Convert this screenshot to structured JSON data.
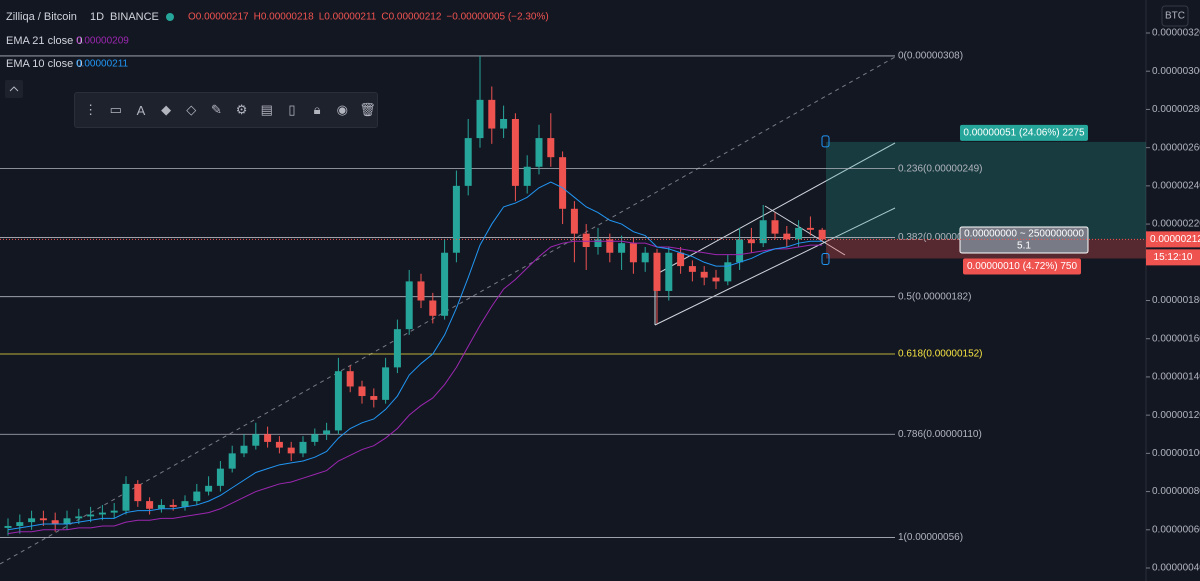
{
  "chart_data": {
    "type": "candlestick",
    "symbol": "Zilliqa / Bitcoin",
    "interval": "1D",
    "exchange": "BINANCE",
    "ohlc_legend": [
      "O0.00000217",
      "H0.00000218",
      "L0.00000211",
      "C0.00000212",
      "−0.00000005 (−2.30%)"
    ],
    "up_color": "#26a69a",
    "down_color": "#ef5350",
    "open": [
      6.1e-07,
      6.2e-07,
      6.4e-07,
      6.6e-07,
      6.5e-07,
      6.3e-07,
      6.6e-07,
      6.7e-07,
      6.8e-07,
      6.9e-07,
      7e-07,
      8.4e-07,
      7.5e-07,
      7.1e-07,
      7.3e-07,
      7.2e-07,
      7.5e-07,
      8e-07,
      8.3e-07,
      9.2e-07,
      1e-06,
      1.04e-06,
      1.1e-06,
      1.06e-06,
      1.03e-06,
      1e-06,
      1.06e-06,
      1.1e-06,
      1.12e-06,
      1.43e-06,
      1.35e-06,
      1.3e-06,
      1.28e-06,
      1.45e-06,
      1.65e-06,
      1.9e-06,
      1.8e-06,
      1.72e-06,
      2.05e-06,
      2.4e-06,
      2.65e-06,
      2.85e-06,
      2.7e-06,
      2.75e-06,
      2.4e-06,
      2.5e-06,
      2.65e-06,
      2.55e-06,
      2.28e-06,
      2.15e-06,
      2.08e-06,
      2.12e-06,
      2.05e-06,
      2.1e-06,
      2e-06,
      2.05e-06,
      1.85e-06,
      2.05e-06,
      1.98e-06,
      1.95e-06,
      1.92e-06,
      1.9e-06,
      2e-06,
      2.12e-06,
      2.1e-06,
      2.22e-06,
      2.15e-06,
      2.12e-06,
      2.18e-06,
      2.17e-06
    ],
    "high": [
      6.6e-07,
      6.8e-07,
      7e-07,
      7e-07,
      6.9e-07,
      7e-07,
      7.1e-07,
      7.2e-07,
      7.3e-07,
      7.4e-07,
      8.8e-07,
      8.6e-07,
      7.7e-07,
      7.6e-07,
      7.6e-07,
      7.8e-07,
      8.4e-07,
      8.8e-07,
      9.6e-07,
      1.04e-06,
      1.1e-06,
      1.16e-06,
      1.14e-06,
      1.09e-06,
      1.06e-06,
      1.09e-06,
      1.13e-06,
      1.16e-06,
      1.5e-06,
      1.46e-06,
      1.38e-06,
      1.34e-06,
      1.5e-06,
      1.7e-06,
      1.96e-06,
      1.94e-06,
      1.84e-06,
      2.12e-06,
      2.48e-06,
      2.75e-06,
      3.08e-06,
      2.92e-06,
      2.82e-06,
      2.78e-06,
      2.56e-06,
      2.72e-06,
      2.78e-06,
      2.58e-06,
      2.32e-06,
      2.2e-06,
      2.18e-06,
      2.15e-06,
      2.14e-06,
      2.13e-06,
      2.08e-06,
      2.07e-06,
      2.08e-06,
      2.08e-06,
      2.01e-06,
      1.98e-06,
      1.96e-06,
      2.04e-06,
      2.18e-06,
      2.18e-06,
      2.3e-06,
      2.26e-06,
      2.19e-06,
      2.22e-06,
      2.24e-06,
      2.18e-06
    ],
    "low": [
      5.7e-07,
      5.8e-07,
      6e-07,
      6.2e-07,
      5.9e-07,
      6e-07,
      6.3e-07,
      6.4e-07,
      6.5e-07,
      6.6e-07,
      6.8e-07,
      7.2e-07,
      6.8e-07,
      6.9e-07,
      7e-07,
      7e-07,
      7.3e-07,
      7.8e-07,
      8e-07,
      9e-07,
      9.8e-07,
      1.02e-06,
      1.03e-06,
      1e-06,
      9.6e-07,
      9.8e-07,
      1.04e-06,
      1.07e-06,
      1.1e-06,
      1.32e-06,
      1.26e-06,
      1.24e-06,
      1.26e-06,
      1.42e-06,
      1.62e-06,
      1.76e-06,
      1.68e-06,
      1.7e-06,
      2e-06,
      2.35e-06,
      2.6e-06,
      2.62e-06,
      2.65e-06,
      2.32e-06,
      2.36e-06,
      2.46e-06,
      2.5e-06,
      2.2e-06,
      2e-06,
      1.96e-06,
      2.04e-06,
      2e-06,
      1.96e-06,
      1.94e-06,
      1.95e-06,
      1.68e-06,
      1.8e-06,
      1.94e-06,
      1.9e-06,
      1.88e-06,
      1.86e-06,
      1.88e-06,
      1.96e-06,
      2.05e-06,
      2.08e-06,
      2.12e-06,
      2.08e-06,
      2.08e-06,
      2.14e-06,
      2.11e-06
    ],
    "close": [
      6.2e-07,
      6.4e-07,
      6.6e-07,
      6.5e-07,
      6.3e-07,
      6.6e-07,
      6.7e-07,
      6.8e-07,
      6.9e-07,
      7e-07,
      8.4e-07,
      7.5e-07,
      7.1e-07,
      7.3e-07,
      7.2e-07,
      7.5e-07,
      8e-07,
      8.3e-07,
      9.2e-07,
      1e-06,
      1.04e-06,
      1.1e-06,
      1.06e-06,
      1.03e-06,
      1e-06,
      1.06e-06,
      1.1e-06,
      1.12e-06,
      1.43e-06,
      1.35e-06,
      1.3e-06,
      1.28e-06,
      1.45e-06,
      1.65e-06,
      1.9e-06,
      1.8e-06,
      1.72e-06,
      2.05e-06,
      2.4e-06,
      2.65e-06,
      2.85e-06,
      2.7e-06,
      2.75e-06,
      2.4e-06,
      2.5e-06,
      2.65e-06,
      2.55e-06,
      2.28e-06,
      2.15e-06,
      2.08e-06,
      2.12e-06,
      2.05e-06,
      2.1e-06,
      2e-06,
      2.05e-06,
      1.85e-06,
      2.05e-06,
      1.98e-06,
      1.95e-06,
      1.92e-06,
      1.9e-06,
      2e-06,
      2.12e-06,
      2.1e-06,
      2.22e-06,
      2.15e-06,
      2.12e-06,
      2.18e-06,
      2.17e-06,
      2.12e-06
    ],
    "series": [
      {
        "name": "EMA 21 close 0",
        "color": "#9c27b0",
        "values": [
          5.8e-07,
          5.9e-07,
          5.9e-07,
          6e-07,
          6e-07,
          6e-07,
          6.1e-07,
          6.1e-07,
          6.2e-07,
          6.2e-07,
          6.4e-07,
          6.5e-07,
          6.5e-07,
          6.6e-07,
          6.6e-07,
          6.7e-07,
          6.8e-07,
          6.9e-07,
          7.1e-07,
          7.4e-07,
          7.7e-07,
          8e-07,
          8.2e-07,
          8.4e-07,
          8.5e-07,
          8.7e-07,
          8.9e-07,
          9.1e-07,
          9.6e-07,
          9.9e-07,
          1.02e-06,
          1.04e-06,
          1.08e-06,
          1.13e-06,
          1.2e-06,
          1.25e-06,
          1.29e-06,
          1.36e-06,
          1.45e-06,
          1.56e-06,
          1.67e-06,
          1.77e-06,
          1.86e-06,
          1.91e-06,
          1.97e-06,
          2.03e-06,
          2.08e-06,
          2.1e-06,
          2.11e-06,
          2.11e-06,
          2.11e-06,
          2.11e-06,
          2.11e-06,
          2.1e-06,
          2.1e-06,
          2.08e-06,
          2.08e-06,
          2.07e-06,
          2.06e-06,
          2.05e-06,
          2.04e-06,
          2.04e-06,
          2.04e-06,
          2.05e-06,
          2.06e-06,
          2.07e-06,
          2.07e-06,
          2.08e-06,
          2.09e-06,
          2.09e-06
        ]
      },
      {
        "name": "EMA 10 close 0",
        "color": "#2196f3",
        "values": [
          6e-07,
          6.1e-07,
          6.2e-07,
          6.3e-07,
          6.3e-07,
          6.3e-07,
          6.4e-07,
          6.5e-07,
          6.6e-07,
          6.6e-07,
          6.9e-07,
          7e-07,
          7e-07,
          7.1e-07,
          7.1e-07,
          7.2e-07,
          7.3e-07,
          7.5e-07,
          7.8e-07,
          8.2e-07,
          8.6e-07,
          9e-07,
          9.2e-07,
          9.4e-07,
          9.5e-07,
          9.6e-07,
          9.8e-07,
          1.01e-06,
          1.08e-06,
          1.13e-06,
          1.16e-06,
          1.18e-06,
          1.23e-06,
          1.3e-06,
          1.41e-06,
          1.47e-06,
          1.52e-06,
          1.62e-06,
          1.76e-06,
          1.92e-06,
          2.09e-06,
          2.2e-06,
          2.29e-06,
          2.31e-06,
          2.34e-06,
          2.39e-06,
          2.42e-06,
          2.39e-06,
          2.34e-06,
          2.29e-06,
          2.26e-06,
          2.22e-06,
          2.2e-06,
          2.16e-06,
          2.14e-06,
          2.08e-06,
          2.07e-06,
          2.05e-06,
          2.03e-06,
          2e-06,
          1.98e-06,
          1.98e-06,
          2e-06,
          2.02e-06,
          2.05e-06,
          2.07e-06,
          2.08e-06,
          2.1e-06,
          2.11e-06,
          2.11e-06
        ]
      }
    ],
    "ylim": [
      4e-07,
      3.2e-06
    ],
    "yticks": [
      {
        "value": 4e-07,
        "label": "0.00000040"
      },
      {
        "value": 6e-07,
        "label": "0.00000060"
      },
      {
        "value": 8e-07,
        "label": "0.00000080"
      },
      {
        "value": 1e-06,
        "label": "0.00000100"
      },
      {
        "value": 1.2e-06,
        "label": "0.00000120"
      },
      {
        "value": 1.4e-06,
        "label": "0.00000140"
      },
      {
        "value": 1.6e-06,
        "label": "0.00000160"
      },
      {
        "value": 1.8e-06,
        "label": "0.00000180"
      },
      {
        "value": 2e-06,
        "label": "0.00000200"
      },
      {
        "value": 2.2e-06,
        "label": "0.00000220"
      },
      {
        "value": 2.4e-06,
        "label": "0.00000240"
      },
      {
        "value": 2.6e-06,
        "label": "0.00000260"
      },
      {
        "value": 2.8e-06,
        "label": "0.00000280"
      },
      {
        "value": 3e-06,
        "label": "0.00000300"
      },
      {
        "value": 3.2e-06,
        "label": "0.00000320"
      }
    ],
    "fib_levels": [
      {
        "value": 3.08e-06,
        "label": "0(0.00000308)",
        "color": "#b2b5be"
      },
      {
        "value": 2.49e-06,
        "label": "0.236(0.00000249)",
        "color": "#b2b5be"
      },
      {
        "value": 2.13e-06,
        "label": "0.382(0.00000213)",
        "color": "#b2b5be"
      },
      {
        "value": 1.82e-06,
        "label": "0.5(0.00000182)",
        "color": "#b2b5be"
      },
      {
        "value": 1.52e-06,
        "label": "0.618(0.00000152)",
        "color": "#f5e342"
      },
      {
        "value": 1.1e-06,
        "label": "0.786(0.00000110)",
        "color": "#b2b5be"
      },
      {
        "value": 5.6e-07,
        "label": "1(0.00000056)",
        "color": "#b2b5be"
      }
    ],
    "position": {
      "target": 2.63e-06,
      "entry": 2.12e-06,
      "stop": 2.02e-06,
      "target_label": "0.00000051 (24.06%) 2275",
      "center_label": "0.00000000 ~ 2500000000",
      "ratio_label": "5.1",
      "stop_label": "0.00000010 (4.72%) 750"
    },
    "countdown": "15:12:10",
    "currency": "BTC"
  }
}
